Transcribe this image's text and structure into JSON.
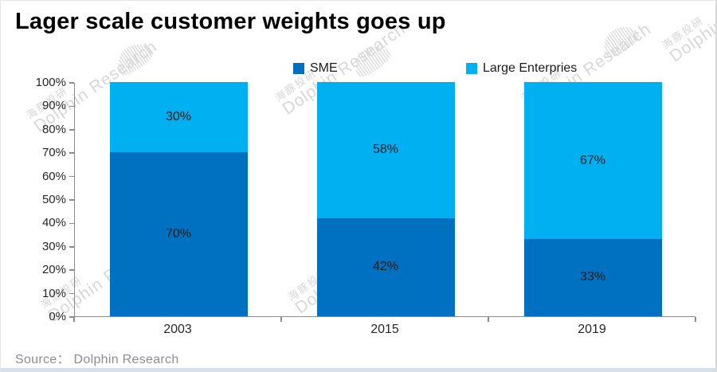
{
  "title": "Lager scale customer weights goes up",
  "source": "Source： Dolphin Research",
  "watermark": {
    "cjk": "海豚投研",
    "en": "Dolphin Research"
  },
  "legend": [
    {
      "label": "SME",
      "color": "#0070C0"
    },
    {
      "label": "Large Enterpries",
      "color": "#00B0F0"
    }
  ],
  "chart_data": {
    "type": "bar",
    "stacked": true,
    "title": "Lager scale customer weights goes up",
    "categories": [
      "2003",
      "2015",
      "2019"
    ],
    "series": [
      {
        "name": "SME",
        "color": "#0070C0",
        "values": [
          70,
          42,
          33
        ]
      },
      {
        "name": "Large Enterpries",
        "color": "#00B0F0",
        "values": [
          30,
          58,
          67
        ]
      }
    ],
    "value_label_format": "percent",
    "xlabel": "",
    "ylabel": "",
    "ylim": [
      0,
      100
    ],
    "y_ticks": [
      "0%",
      "10%",
      "20%",
      "30%",
      "40%",
      "50%",
      "60%",
      "70%",
      "80%",
      "90%",
      "100%"
    ],
    "grid": false,
    "legend_position": "top"
  }
}
